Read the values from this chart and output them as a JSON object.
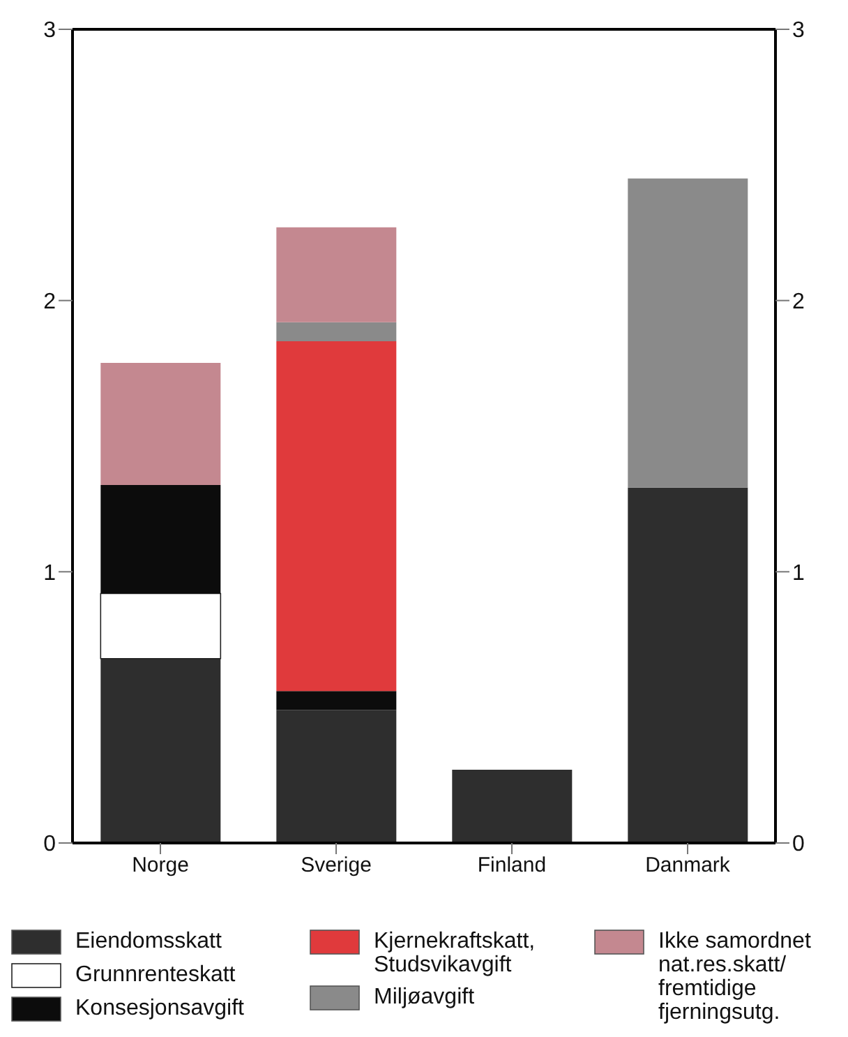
{
  "chart_data": {
    "type": "bar",
    "stacked": true,
    "categories": [
      "Norge",
      "Sverige",
      "Finland",
      "Danmark"
    ],
    "series": [
      {
        "name": "Eiendomsskatt",
        "color": "#2e2e2e",
        "values": [
          0.68,
          0.49,
          0.27,
          1.31
        ]
      },
      {
        "name": "Grunnrenteskatt",
        "color": "#ffffff",
        "values": [
          0.24,
          null,
          null,
          null
        ]
      },
      {
        "name": "Konsesjonsavgift",
        "color": "#0c0c0c",
        "values": [
          0.4,
          0.07,
          null,
          null
        ]
      },
      {
        "name": "Kjernekraftskatt, Studsvikavgift",
        "color": "#e03a3c",
        "values": [
          null,
          1.29,
          null,
          null
        ]
      },
      {
        "name": "Miljøavgift",
        "color": "#8a8a8a",
        "values": [
          null,
          0.07,
          null,
          1.14
        ]
      },
      {
        "name": "Ikke samordnet nat.res.skatt/ fremtidige fjerningsutg.",
        "color": "#c48890",
        "values": [
          0.45,
          0.35,
          null,
          null
        ]
      }
    ],
    "ylim": [
      0,
      3
    ],
    "yticks": [
      0,
      1,
      2,
      3
    ],
    "y2lim": [
      0,
      3
    ],
    "y2ticks": [
      0,
      1,
      2,
      3
    ],
    "legend": "bottom"
  }
}
